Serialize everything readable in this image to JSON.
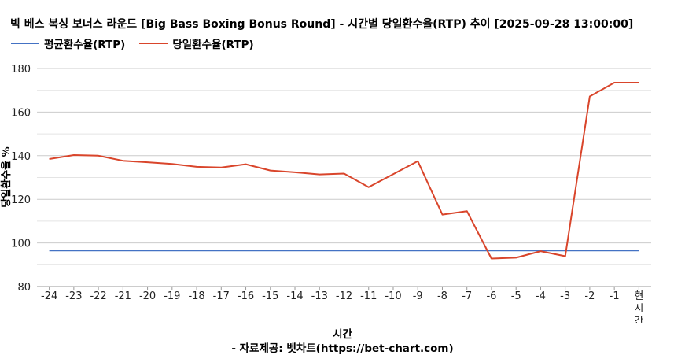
{
  "title": "빅 베스 복싱 보너스 라운드 [Big Bass Boxing Bonus Round] - 시간별 당일환수율(RTP) 추이 [2025-09-28 13:00:00]",
  "footer": {
    "xlabel": "시간",
    "source": "- 자료제공: 벳차트(https://bet-chart.com)"
  },
  "chart_data": {
    "type": "line",
    "title": "빅 베스 복싱 보너스 라운드 [Big Bass Boxing Bonus Round] - 시간별 당일환수율(RTP) 추이 [2025-09-28 13:00:00]",
    "xlabel": "시간",
    "ylabel": "당일환수율 %",
    "categories": [
      "-24",
      "-23",
      "-22",
      "-21",
      "-20",
      "-19",
      "-18",
      "-17",
      "-16",
      "-15",
      "-14",
      "-13",
      "-12",
      "-11",
      "-10",
      "-9",
      "-8",
      "-7",
      "-6",
      "-5",
      "-4",
      "-3",
      "-2",
      "-1",
      "현시간"
    ],
    "ylim": [
      80,
      180
    ],
    "yticks": [
      80,
      100,
      120,
      140,
      160,
      180
    ],
    "grid": true,
    "legend_position": "top-left",
    "series": [
      {
        "name": "평균환수율(RTP)",
        "color": "#4472c4",
        "values": [
          96.5,
          96.5,
          96.5,
          96.5,
          96.5,
          96.5,
          96.5,
          96.5,
          96.5,
          96.5,
          96.5,
          96.5,
          96.5,
          96.5,
          96.5,
          96.5,
          96.5,
          96.5,
          96.5,
          96.5,
          96.5,
          96.5,
          96.5,
          96.5,
          96.5
        ]
      },
      {
        "name": "당일환수율(RTP)",
        "color": "#d9452b",
        "values": [
          138.5,
          140.3,
          140.0,
          137.7,
          137.0,
          136.2,
          134.9,
          134.6,
          136.1,
          133.2,
          132.4,
          131.4,
          131.8,
          125.6,
          131.5,
          137.5,
          113.0,
          114.6,
          92.8,
          93.2,
          96.2,
          93.9,
          167.2,
          173.5,
          173.5
        ]
      }
    ]
  }
}
